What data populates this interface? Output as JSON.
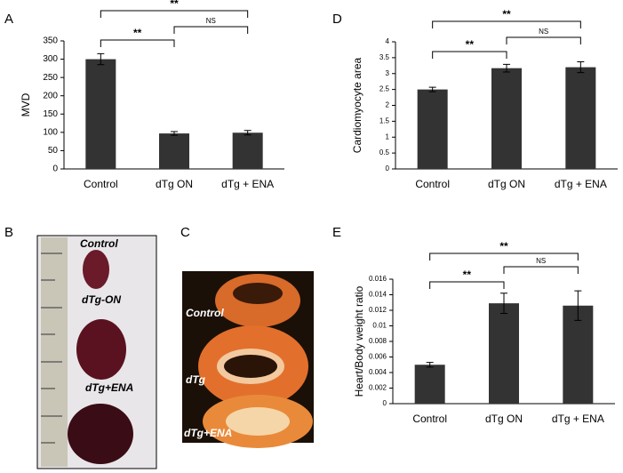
{
  "chart_data": [
    {
      "type": "bar",
      "panel": "A",
      "y_label": "MVD",
      "categories": [
        "Control",
        "dTg ON",
        "dTg + ENA"
      ],
      "values": [
        300,
        97,
        99
      ],
      "errors": [
        15,
        5,
        6
      ],
      "color": "#333333",
      "ylim": [
        0,
        350
      ],
      "yticks": [
        0,
        50,
        100,
        150,
        200,
        250,
        300,
        350
      ],
      "annotations": [
        {
          "text": "**",
          "between": [
            0,
            1
          ]
        },
        {
          "text": "NS",
          "between": [
            1,
            2
          ]
        },
        {
          "text": "**",
          "between": [
            0,
            2
          ]
        }
      ]
    },
    {
      "type": "bar",
      "panel": "D",
      "y_label": "Cardiomyocyte area",
      "categories": [
        "Control",
        "dTg ON",
        "dTg + ENA"
      ],
      "values": [
        2.5,
        3.17,
        3.2
      ],
      "errors": [
        0.07,
        0.12,
        0.17
      ],
      "color": "#333333",
      "ylim": [
        0,
        4
      ],
      "yticks": [
        0,
        0.5,
        1,
        1.5,
        2,
        2.5,
        3,
        3.5,
        4
      ],
      "annotations": [
        {
          "text": "**",
          "between": [
            0,
            1
          ]
        },
        {
          "text": "NS",
          "between": [
            1,
            2
          ]
        },
        {
          "text": "**",
          "between": [
            0,
            2
          ]
        }
      ]
    },
    {
      "type": "bar",
      "panel": "E",
      "y_label": "Heart/Body weight ratio",
      "categories": [
        "Control",
        "dTg ON",
        "dTg + ENA"
      ],
      "values": [
        0.005,
        0.0129,
        0.0126
      ],
      "errors": [
        0.0003,
        0.0013,
        0.0019
      ],
      "color": "#333333",
      "ylim": [
        0,
        0.016
      ],
      "yticks": [
        0,
        0.002,
        0.004,
        0.006,
        0.008,
        0.01,
        0.012,
        0.014,
        0.016
      ],
      "annotations": [
        {
          "text": "**",
          "between": [
            0,
            1
          ]
        },
        {
          "text": "NS",
          "between": [
            1,
            2
          ]
        },
        {
          "text": "**",
          "between": [
            0,
            2
          ]
        }
      ]
    }
  ],
  "photos": [
    {
      "panel": "B",
      "labels": [
        "Control",
        "dTg-ON",
        "dTg+ENA"
      ]
    },
    {
      "panel": "C",
      "labels": [
        "Control",
        "dTg",
        "dTg+ENA"
      ]
    }
  ]
}
